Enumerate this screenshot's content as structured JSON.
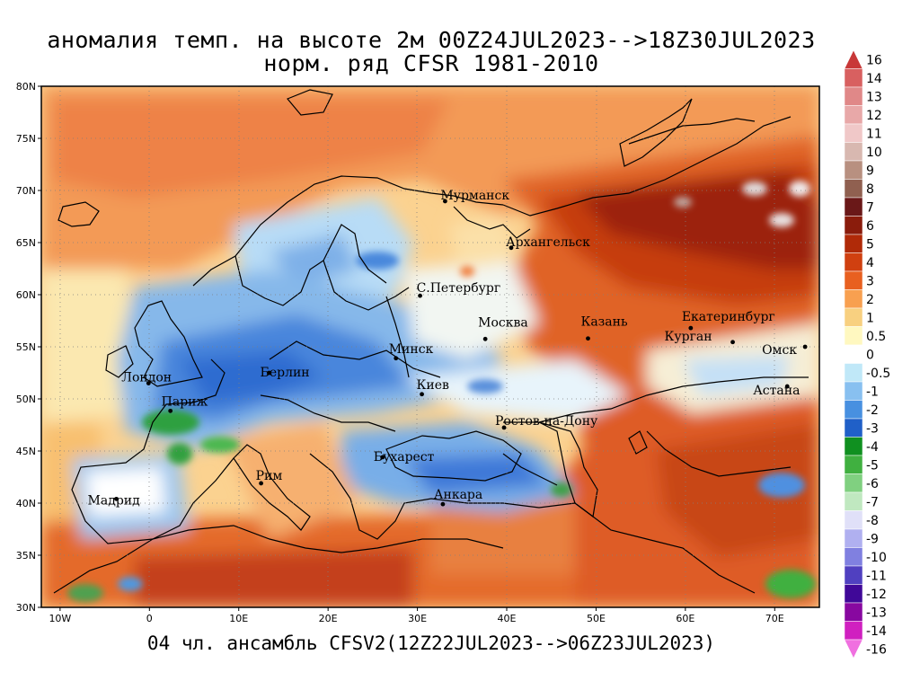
{
  "title_line1": "аномалия темп. на высоте 2м 00Z24JUL2023-->18Z30JUL2023",
  "title_line2": "норм. ряд CFSR 1981-2010",
  "footer": "04 чл. ансамбль CFSV2(12Z22JUL2023-->06Z23JUL2023)",
  "lat_ticks": [
    "80N",
    "75N",
    "70N",
    "65N",
    "60N",
    "55N",
    "50N",
    "45N",
    "40N",
    "35N",
    "30N"
  ],
  "lon_ticks": [
    "10W",
    "0",
    "10E",
    "20E",
    "30E",
    "40E",
    "50E",
    "60E",
    "70E"
  ],
  "cities": [
    {
      "name": "Мурманск",
      "lon": 33.1,
      "lat": 68.97
    },
    {
      "name": "Архангельск",
      "lon": 40.5,
      "lat": 64.5
    },
    {
      "name": "С.Петербург",
      "lon": 30.3,
      "lat": 59.9
    },
    {
      "name": "Москва",
      "lon": 37.6,
      "lat": 55.75
    },
    {
      "name": "Казань",
      "lon": 49.1,
      "lat": 55.8
    },
    {
      "name": "Екатеринбург",
      "lon": 60.6,
      "lat": 56.8
    },
    {
      "name": "Курган",
      "lon": 65.3,
      "lat": 55.45
    },
    {
      "name": "Омск",
      "lon": 73.4,
      "lat": 55.0
    },
    {
      "name": "Астана",
      "lon": 71.4,
      "lat": 51.2
    },
    {
      "name": "Минск",
      "lon": 27.6,
      "lat": 53.9
    },
    {
      "name": "Киев",
      "lon": 30.5,
      "lat": 50.45
    },
    {
      "name": "Ростов-на-Дону",
      "lon": 39.7,
      "lat": 47.25
    },
    {
      "name": "Берлин",
      "lon": 13.4,
      "lat": 52.5
    },
    {
      "name": "Лондон",
      "lon": -0.1,
      "lat": 51.5
    },
    {
      "name": "Париж",
      "lon": 2.35,
      "lat": 48.85
    },
    {
      "name": "Бухарест",
      "lon": 26.1,
      "lat": 44.4
    },
    {
      "name": "Рим",
      "lon": 12.5,
      "lat": 41.9
    },
    {
      "name": "Мадрид",
      "lon": -3.7,
      "lat": 40.4
    },
    {
      "name": "Анкара",
      "lon": 32.85,
      "lat": 39.9
    }
  ],
  "colorbar": {
    "labels": [
      "16",
      "14",
      "13",
      "12",
      "11",
      "10",
      "9",
      "8",
      "7",
      "6",
      "5",
      "4",
      "3",
      "2",
      "1",
      "0.5",
      "0",
      "-0.5",
      "-1",
      "-2",
      "-3",
      "-4",
      "-5",
      "-6",
      "-7",
      "-8",
      "-9",
      "-10",
      "-11",
      "-12",
      "-13",
      "-14",
      "-16"
    ],
    "colors": [
      "#c83838",
      "#d86060",
      "#e08888",
      "#e8a8a8",
      "#f0c8c8",
      "#d8b8b0",
      "#b89080",
      "#906050",
      "#6a1818",
      "#8a1c0c",
      "#b02a08",
      "#d04010",
      "#e86020",
      "#f8a050",
      "#f8d080",
      "#fff8c0",
      "#ffffff",
      "#c0e8f8",
      "#88c0f0",
      "#4890e0",
      "#2060c8",
      "#109020",
      "#40b040",
      "#80d080",
      "#c0e8c0",
      "#e0e0f8",
      "#b0b0f0",
      "#8080e0",
      "#5040c0",
      "#400898",
      "#8808a0",
      "#d020c0",
      "#f070e0"
    ]
  },
  "colors": {
    "ocean": "#fbdca0",
    "land_warm": "#e86a30",
    "hot": "#b62c0c",
    "very_hot": "#8c1606",
    "cool": "#86b8ea",
    "cold": "#3a78d8",
    "green": "#30a040"
  }
}
